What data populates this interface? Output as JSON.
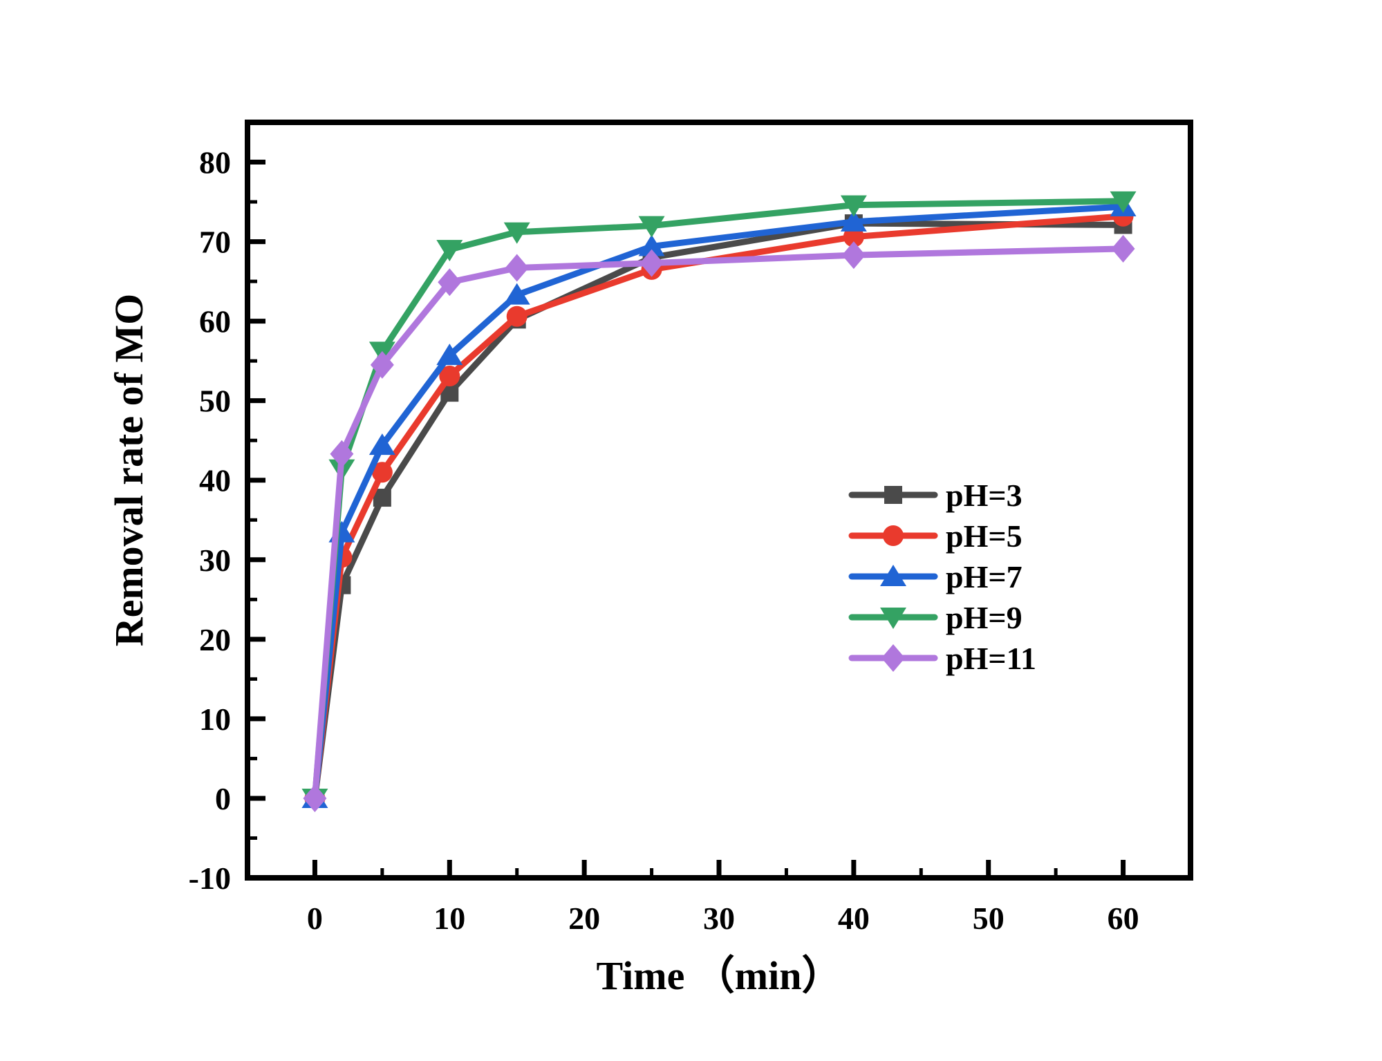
{
  "figure": {
    "background": "#ffffff",
    "frame_color": "#000000"
  },
  "chart_data": {
    "type": "line",
    "title": "",
    "xlabel": "Time （min）",
    "ylabel": "Removal rate of MO",
    "x": [
      0,
      2,
      5,
      10,
      15,
      25,
      40,
      60
    ],
    "series": [
      {
        "name": "pH=3",
        "marker": "square",
        "color": "#4a4a4a",
        "values": [
          0,
          26.8,
          37.8,
          51.0,
          60.2,
          68.0,
          72.3,
          72.1
        ]
      },
      {
        "name": "pH=5",
        "marker": "circle",
        "color": "#e93a2d",
        "values": [
          0,
          30.3,
          41.0,
          53.1,
          60.6,
          66.5,
          70.6,
          73.2
        ]
      },
      {
        "name": "pH=7",
        "marker": "triangle-up",
        "color": "#2064d4",
        "values": [
          0,
          33.4,
          44.4,
          55.7,
          63.3,
          69.4,
          72.5,
          74.4
        ]
      },
      {
        "name": "pH=9",
        "marker": "triangle-down",
        "color": "#34a263",
        "values": [
          0,
          41.4,
          56.2,
          69.0,
          71.2,
          72.0,
          74.6,
          75.1
        ]
      },
      {
        "name": "pH=11",
        "marker": "diamond",
        "color": "#b077dd",
        "values": [
          0,
          43.3,
          54.5,
          64.9,
          66.7,
          67.3,
          68.3,
          69.1
        ]
      }
    ],
    "xlim": [
      -5,
      65
    ],
    "ylim": [
      -10,
      85
    ],
    "x_major_ticks": [
      0,
      10,
      20,
      30,
      40,
      50,
      60
    ],
    "x_minor_ticks": [
      5,
      15,
      25,
      35,
      45,
      55
    ],
    "y_major_ticks": [
      -10,
      0,
      10,
      20,
      30,
      40,
      50,
      60,
      70,
      80
    ],
    "y_minor_ticks": [
      -5,
      5,
      15,
      25,
      35,
      45,
      55,
      65,
      75
    ],
    "grid": false,
    "legend_position": "inside-right-middle"
  }
}
